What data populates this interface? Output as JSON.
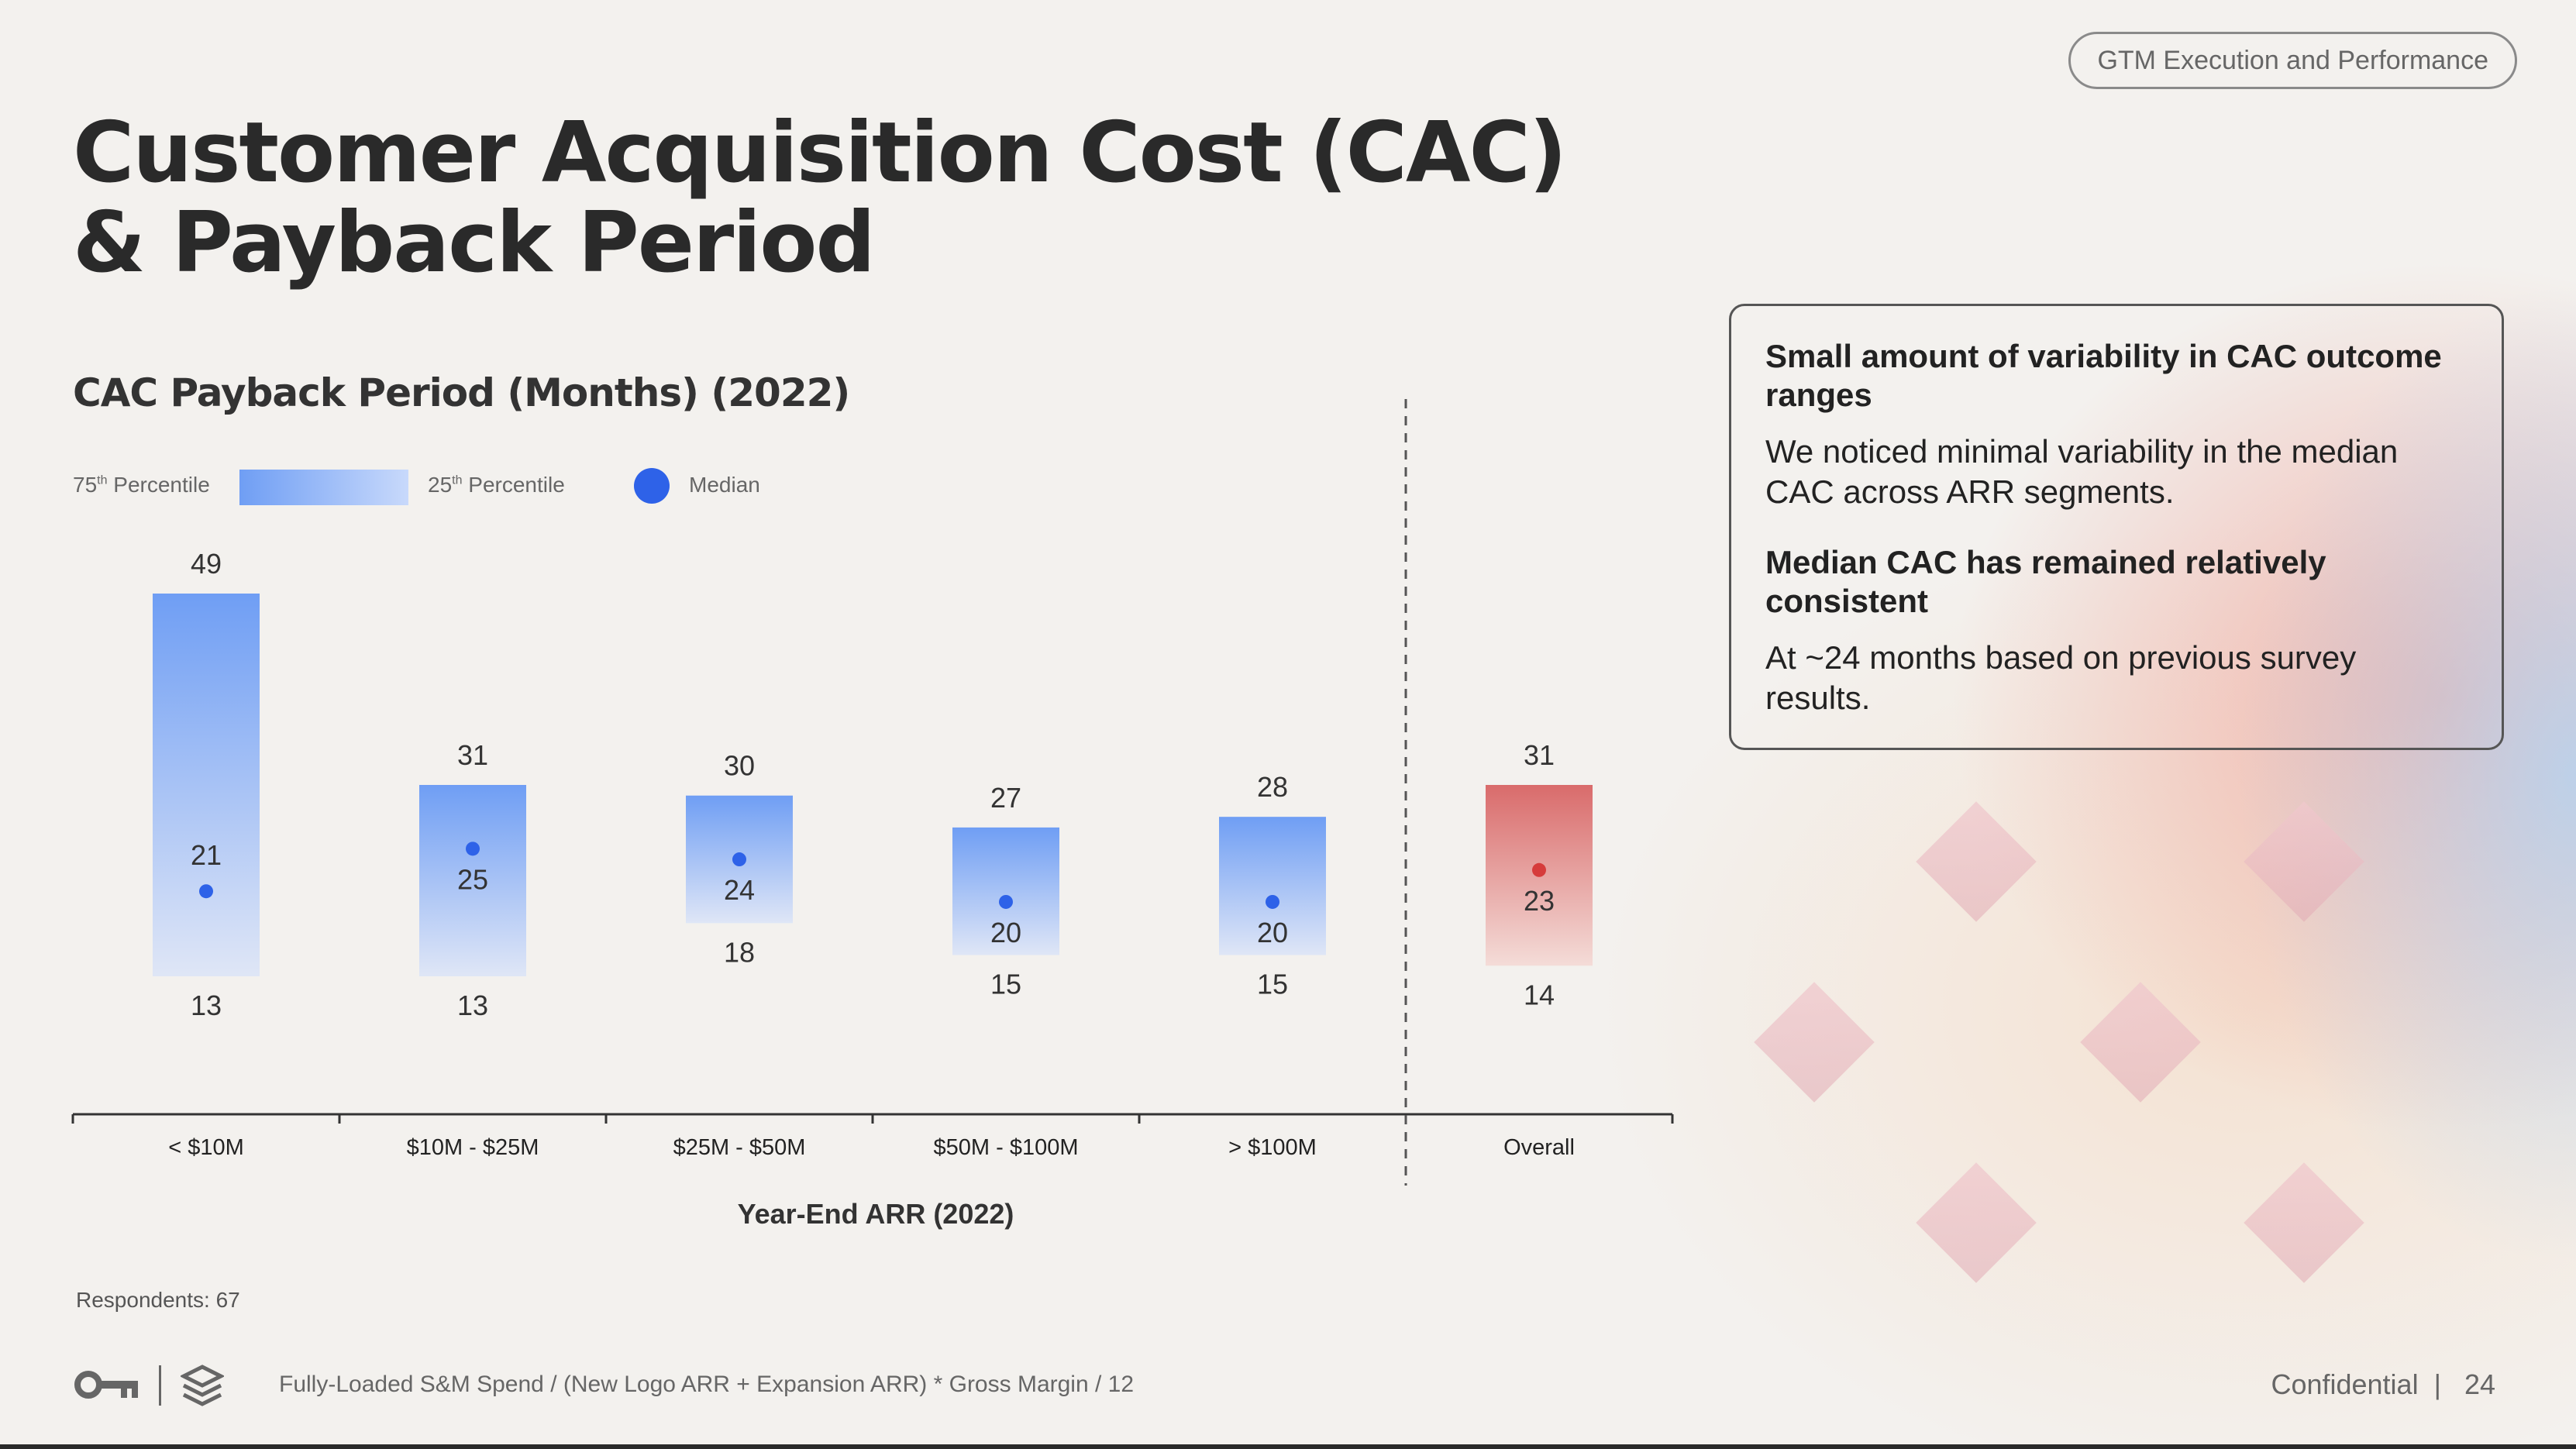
{
  "header": {
    "tag": "GTM Execution and Performance",
    "title_line1": "Customer Acquisition Cost (CAC)",
    "title_line2": "& Payback Period"
  },
  "chart_title": "CAC Payback Period (Months) (2022)",
  "legend": {
    "p75": "75",
    "p75_suffix": "th",
    "p75_word": " Percentile",
    "p25": "25",
    "p25_suffix": "th",
    "p25_word": " Percentile",
    "median": "Median"
  },
  "chart_data": {
    "type": "bar",
    "title": "CAC Payback Period (Months) (2022)",
    "xlabel": "Year-End ARR (2022)",
    "ylabel": "",
    "categories": [
      "< $10M",
      "$10M - $25M",
      "$25M - $50M",
      "$50M - $100M",
      "> $100M",
      "Overall"
    ],
    "p75": [
      49,
      31,
      30,
      27,
      28,
      31
    ],
    "p25": [
      13,
      13,
      18,
      15,
      15,
      14
    ],
    "median": [
      21,
      25,
      24,
      20,
      20,
      23
    ],
    "ylim": [
      0,
      55
    ],
    "colors": {
      "segment": "#6f9ef4",
      "segment_light": "#d6e2fa",
      "overall": "#d96b6b",
      "overall_light": "#f3d6d3",
      "median_segment": "#2e62e8",
      "median_overall": "#d63b3b"
    }
  },
  "respondents": "Respondents: 67",
  "callout": [
    {
      "heading": "Small amount of variability in CAC outcome ranges",
      "body": "We noticed minimal variability in the median CAC across ARR segments."
    },
    {
      "heading": "Median CAC has remained relatively consistent",
      "body": "At ~24 months based on previous survey results."
    }
  ],
  "footer": {
    "formula": "Fully-Loaded S&M Spend / (New Logo ARR + Expansion ARR) * Gross Margin / 12",
    "confidential": "Confidential",
    "page": "24",
    "icons": [
      "key-icon",
      "stack-logo-icon"
    ]
  }
}
